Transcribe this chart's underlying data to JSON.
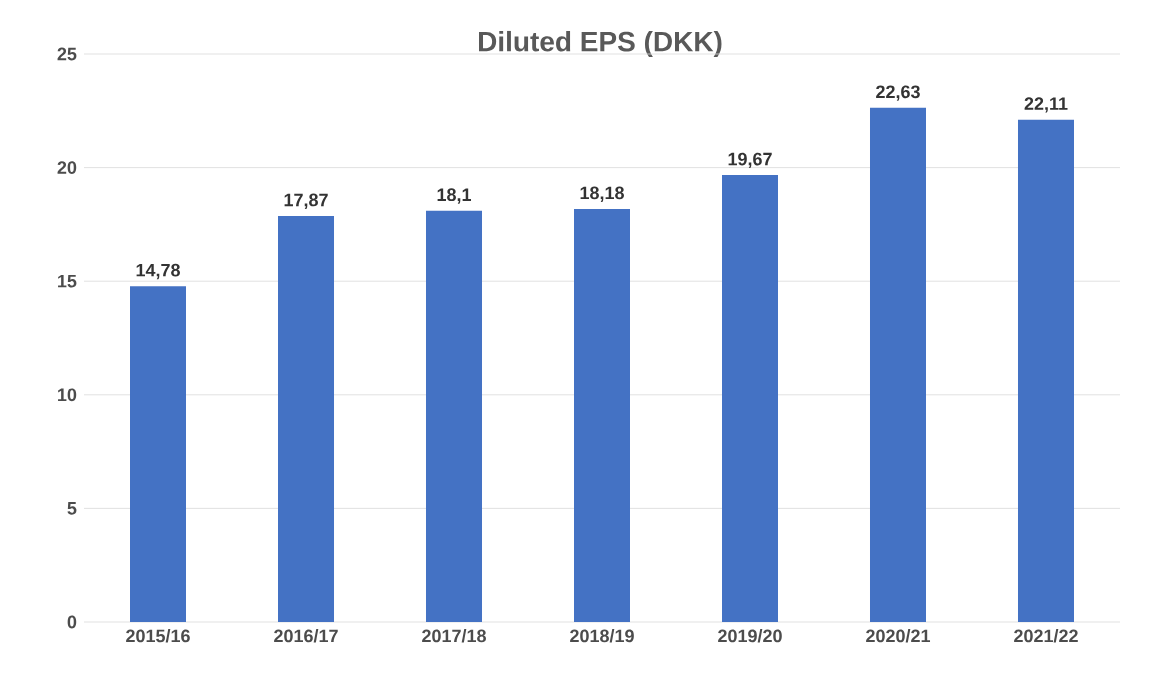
{
  "chart_data": {
    "type": "bar",
    "title": "Diluted EPS (DKK)",
    "categories": [
      "2015/16",
      "2016/17",
      "2017/18",
      "2018/19",
      "2019/20",
      "2020/21",
      "2021/22"
    ],
    "values": [
      14.78,
      17.87,
      18.1,
      18.18,
      19.67,
      22.63,
      22.11
    ],
    "value_labels": [
      "14,78",
      "17,87",
      "18,1",
      "18,18",
      "19,67",
      "22,63",
      "22,11"
    ],
    "color": "#4472c4",
    "ylim": [
      0,
      25
    ],
    "yticks": [
      0,
      5,
      10,
      15,
      20,
      25
    ],
    "grid": "y"
  }
}
